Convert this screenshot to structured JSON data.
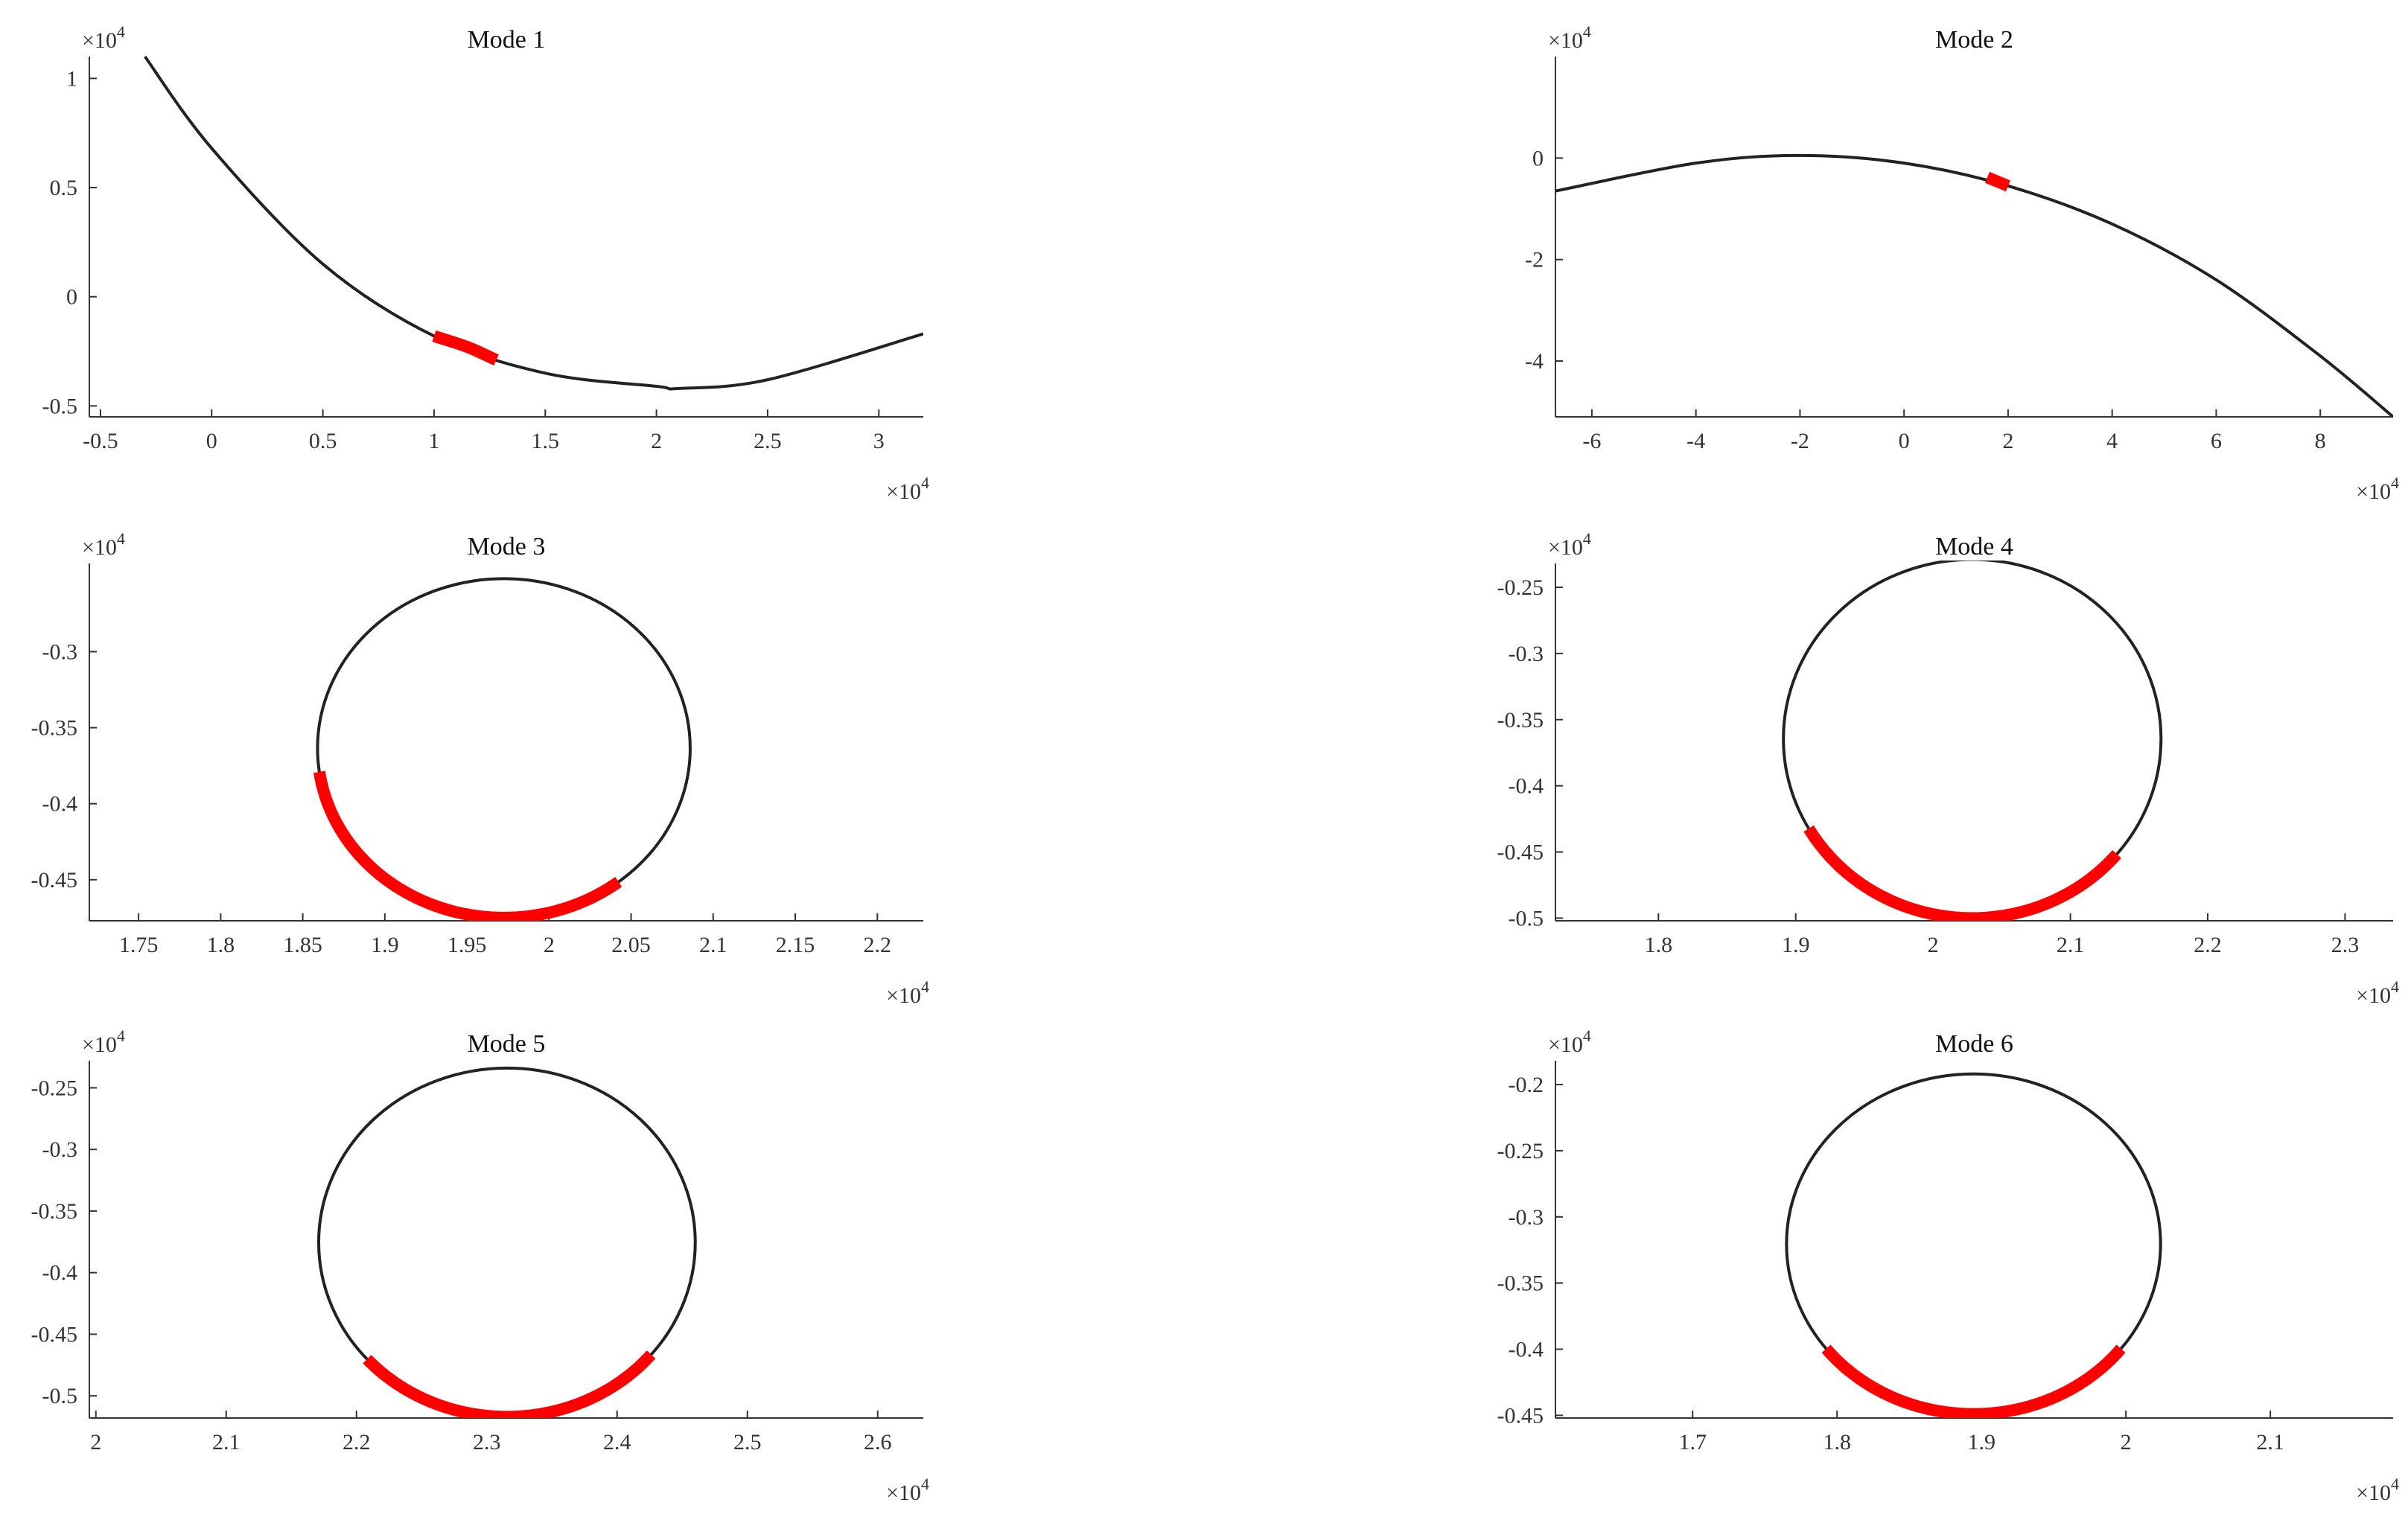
{
  "chart_data": [
    {
      "type": "line",
      "title": "Mode 1",
      "x_multiplier": "×10",
      "x_multiplier_exp": "4",
      "y_multiplier": "×10",
      "y_multiplier_exp": "4",
      "xlim": [
        -0.55,
        3.2
      ],
      "ylim": [
        -0.55,
        1.1
      ],
      "x_ticks": [
        -0.5,
        0,
        0.5,
        1,
        1.5,
        2,
        2.5,
        3
      ],
      "x_tick_labels": [
        "-0.5",
        "0",
        "0.5",
        "1",
        "1.5",
        "2",
        "2.5",
        "3"
      ],
      "y_ticks": [
        -0.5,
        0,
        0.5,
        1
      ],
      "y_tick_labels": [
        "-0.5",
        "0",
        "0.5",
        "1"
      ],
      "series": [
        {
          "style": "curve",
          "color": "#222222",
          "x": [
            -0.3,
            0.0,
            0.5,
            1.0,
            1.5,
            2.0,
            2.1,
            2.5,
            3.2
          ],
          "y": [
            1.1,
            0.68,
            0.15,
            -0.18,
            -0.35,
            -0.41,
            -0.42,
            -0.38,
            -0.17
          ]
        },
        {
          "style": "highlight",
          "color": "#ff0000",
          "x": [
            1.0,
            1.15,
            1.28
          ],
          "y": [
            -0.18,
            -0.23,
            -0.29
          ]
        }
      ]
    },
    {
      "type": "line",
      "title": "Mode 2",
      "x_multiplier": "×10",
      "x_multiplier_exp": "4",
      "y_multiplier": "×10",
      "y_multiplier_exp": "4",
      "xlim": [
        -6.7,
        9.4
      ],
      "ylim": [
        -5.1,
        2.0
      ],
      "x_ticks": [
        -6,
        -4,
        -2,
        0,
        2,
        4,
        6,
        8
      ],
      "x_tick_labels": [
        "-6",
        "-4",
        "-2",
        "0",
        "2",
        "4",
        "6",
        "8"
      ],
      "y_ticks": [
        -4,
        -2,
        0
      ],
      "y_tick_labels": [
        "-4",
        "-2",
        "0"
      ],
      "series": [
        {
          "style": "curve",
          "color": "#222222",
          "x": [
            -6.7,
            -4.0,
            -2.0,
            0.0,
            2.0,
            4.0,
            6.0,
            8.0,
            9.4
          ],
          "y": [
            -0.65,
            -0.1,
            0.05,
            -0.1,
            -0.55,
            -1.3,
            -2.4,
            -3.9,
            -5.1
          ]
        },
        {
          "style": "highlight",
          "color": "#ff0000",
          "x": [
            1.6,
            2.0
          ],
          "y": [
            -0.38,
            -0.55
          ]
        }
      ]
    },
    {
      "type": "line",
      "title": "Mode 3",
      "x_multiplier": "×10",
      "x_multiplier_exp": "4",
      "y_multiplier": "×10",
      "y_multiplier_exp": "4",
      "xlim": [
        1.72,
        2.228
      ],
      "ylim": [
        -0.477,
        -0.242
      ],
      "x_ticks": [
        1.75,
        1.8,
        1.85,
        1.9,
        1.95,
        2,
        2.05,
        2.1,
        2.15,
        2.2
      ],
      "x_tick_labels": [
        "1.75",
        "1.8",
        "1.85",
        "1.9",
        "1.95",
        "2",
        "2.05",
        "2.1",
        "2.15",
        "2.2"
      ],
      "y_ticks": [
        -0.45,
        -0.4,
        -0.35,
        -0.3
      ],
      "y_tick_labels": [
        "-0.45",
        "-0.4",
        "-0.35",
        "-0.3"
      ],
      "circle": {
        "cx": 1.9725,
        "cy": -0.3635,
        "rx": 0.1135,
        "ry": 0.1115
      },
      "highlight_arc_deg": [
        -172,
        -52
      ]
    },
    {
      "type": "line",
      "title": "Mode 4",
      "x_multiplier": "×10",
      "x_multiplier_exp": "4",
      "y_multiplier": "×10",
      "y_multiplier_exp": "4",
      "xlim": [
        1.725,
        2.335
      ],
      "ylim": [
        -0.502,
        -0.232
      ],
      "x_ticks": [
        1.8,
        1.9,
        2,
        2.1,
        2.2,
        2.3
      ],
      "x_tick_labels": [
        "1.8",
        "1.9",
        "2",
        "2.1",
        "2.2",
        "2.3"
      ],
      "y_ticks": [
        -0.5,
        -0.45,
        -0.4,
        -0.35,
        -0.3,
        -0.25
      ],
      "y_tick_labels": [
        "-0.5",
        "-0.45",
        "-0.4",
        "-0.35",
        "-0.3",
        "-0.25"
      ],
      "circle": {
        "cx": 2.0285,
        "cy": -0.3645,
        "rx": 0.1375,
        "ry": 0.1355
      },
      "highlight_arc_deg": [
        -150,
        -40
      ]
    },
    {
      "type": "line",
      "title": "Mode 5",
      "x_multiplier": "×10",
      "x_multiplier_exp": "4",
      "y_multiplier": "×10",
      "y_multiplier_exp": "4",
      "xlim": [
        1.995,
        2.635
      ],
      "ylim": [
        -0.518,
        -0.228
      ],
      "x_ticks": [
        2,
        2.1,
        2.2,
        2.3,
        2.4,
        2.5,
        2.6
      ],
      "x_tick_labels": [
        "2",
        "2.1",
        "2.2",
        "2.3",
        "2.4",
        "2.5",
        "2.6"
      ],
      "y_ticks": [
        -0.5,
        -0.45,
        -0.4,
        -0.35,
        -0.3,
        -0.25
      ],
      "y_tick_labels": [
        "-0.5",
        "-0.45",
        "-0.4",
        "-0.35",
        "-0.3",
        "-0.25"
      ],
      "circle": {
        "cx": 2.3155,
        "cy": -0.3755,
        "rx": 0.1445,
        "ry": 0.1415
      },
      "highlight_arc_deg": [
        -138,
        -40
      ]
    },
    {
      "type": "line",
      "title": "Mode 6",
      "x_multiplier": "×10",
      "x_multiplier_exp": "4",
      "y_multiplier": "×10",
      "y_multiplier_exp": "4",
      "xlim": [
        1.605,
        2.185
      ],
      "ylim": [
        -0.452,
        -0.182
      ],
      "x_ticks": [
        1.7,
        1.8,
        1.9,
        2,
        2.1
      ],
      "x_tick_labels": [
        "1.7",
        "1.8",
        "1.9",
        "2",
        "2.1"
      ],
      "y_ticks": [
        -0.45,
        -0.4,
        -0.35,
        -0.3,
        -0.25,
        -0.2
      ],
      "y_tick_labels": [
        "-0.45",
        "-0.4",
        "-0.35",
        "-0.3",
        "-0.25",
        "-0.2"
      ],
      "circle": {
        "cx": 1.8945,
        "cy": -0.3205,
        "rx": 0.1295,
        "ry": 0.1285
      },
      "highlight_arc_deg": [
        -142,
        -38
      ]
    }
  ]
}
